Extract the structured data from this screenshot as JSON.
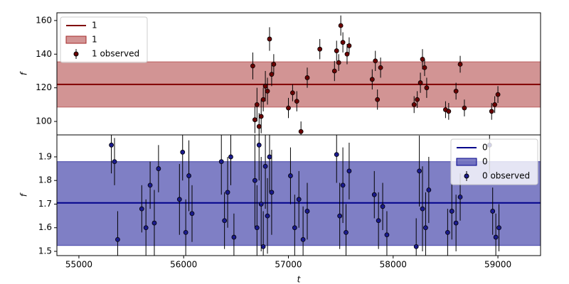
{
  "chart_data": [
    {
      "type": "line",
      "ylabel": "f",
      "xlim": [
        54790,
        59407
      ],
      "ylim": [
        92,
        164.6
      ],
      "yticks": [
        100,
        120,
        140,
        160
      ],
      "legend": "upper left",
      "series": [
        {
          "name": "1",
          "kind": "line",
          "color": "#800000",
          "x": [
            54790,
            59407
          ],
          "values": [
            122,
            122
          ]
        },
        {
          "name": "1",
          "kind": "band",
          "color": "#a52a2a",
          "x": [
            54790,
            59407
          ],
          "lower": [
            108.5,
            108.5
          ],
          "upper": [
            135.5,
            135.5
          ]
        },
        {
          "name": "1 observed",
          "kind": "points",
          "color": "#6b0000",
          "x": [
            56660,
            56680,
            56700,
            56720,
            56740,
            56760,
            56780,
            56800,
            56820,
            56840,
            56860,
            57000,
            57040,
            57080,
            57120,
            57180,
            57300,
            57440,
            57460,
            57480,
            57500,
            57520,
            57560,
            57580,
            57800,
            57830,
            57850,
            57880,
            58200,
            58230,
            58260,
            58280,
            58300,
            58320,
            58500,
            58530,
            58600,
            58640,
            58680,
            58940,
            58970,
            59000
          ],
          "values": [
            133,
            101,
            110,
            97,
            103,
            113,
            121,
            118,
            149,
            128,
            134,
            108,
            117,
            112,
            94,
            126,
            143,
            130,
            142,
            135,
            157,
            147,
            140,
            145,
            125,
            136,
            113,
            132,
            110,
            113,
            123,
            137,
            132,
            120,
            107,
            106,
            118,
            134,
            108,
            106,
            110,
            116
          ],
          "errors": [
            8,
            8,
            10,
            8,
            10,
            7,
            9,
            8,
            7,
            7,
            6,
            6,
            5,
            6,
            6,
            6,
            6,
            6,
            6,
            5,
            6,
            6,
            6,
            5,
            6,
            6,
            6,
            6,
            5,
            5,
            6,
            6,
            5,
            6,
            5,
            5,
            5,
            5,
            5,
            5,
            5,
            5
          ]
        }
      ]
    },
    {
      "type": "line",
      "xlabel": "t",
      "ylabel": "f",
      "xlim": [
        54790,
        59407
      ],
      "ylim": [
        1.482,
        1.993
      ],
      "yticks": [
        1.5,
        1.6,
        1.7,
        1.8,
        1.9
      ],
      "xticks": [
        55000,
        56000,
        57000,
        58000,
        59000
      ],
      "legend": "upper right",
      "series": [
        {
          "name": "0",
          "kind": "line",
          "color": "#00008b",
          "x": [
            54790,
            59407
          ],
          "values": [
            1.705,
            1.705
          ]
        },
        {
          "name": "0",
          "kind": "band",
          "color": "#00008b",
          "x": [
            54790,
            59407
          ],
          "lower": [
            1.525,
            1.525
          ],
          "upper": [
            1.88,
            1.88
          ]
        },
        {
          "name": "0 observed",
          "kind": "points",
          "color": "#1a1a8c",
          "x": [
            55310,
            55340,
            55370,
            55600,
            55640,
            55680,
            55720,
            55760,
            55960,
            55990,
            56020,
            56050,
            56080,
            56360,
            56390,
            56420,
            56450,
            56480,
            56680,
            56700,
            56720,
            56740,
            56760,
            56780,
            56800,
            56820,
            56840,
            57020,
            57060,
            57100,
            57140,
            57180,
            57460,
            57490,
            57520,
            57550,
            57580,
            57820,
            57860,
            57900,
            57940,
            58220,
            58250,
            58280,
            58310,
            58340,
            58520,
            58560,
            58600,
            58640,
            58920,
            58950,
            58980,
            59010
          ],
          "values": [
            1.95,
            1.88,
            1.55,
            1.68,
            1.6,
            1.78,
            1.62,
            1.85,
            1.72,
            1.92,
            1.58,
            1.82,
            1.66,
            1.88,
            1.63,
            1.75,
            1.9,
            1.56,
            1.8,
            1.6,
            1.95,
            1.7,
            1.52,
            1.86,
            1.65,
            1.9,
            1.75,
            1.82,
            1.6,
            1.72,
            1.55,
            1.67,
            1.91,
            1.65,
            1.78,
            1.58,
            1.84,
            1.74,
            1.63,
            1.69,
            1.57,
            1.52,
            1.84,
            1.68,
            1.6,
            1.76,
            1.58,
            1.67,
            1.62,
            1.73,
            1.95,
            1.67,
            1.56,
            1.6
          ],
          "errors": [
            0.12,
            0.1,
            0.12,
            0.1,
            0.12,
            0.1,
            0.14,
            0.1,
            0.15,
            0.12,
            0.14,
            0.15,
            0.12,
            0.14,
            0.12,
            0.15,
            0.12,
            0.1,
            0.2,
            0.18,
            0.15,
            0.2,
            0.15,
            0.18,
            0.16,
            0.15,
            0.18,
            0.12,
            0.14,
            0.12,
            0.14,
            0.12,
            0.12,
            0.14,
            0.16,
            0.12,
            0.12,
            0.1,
            0.12,
            0.1,
            0.1,
            0.12,
            0.15,
            0.18,
            0.15,
            0.14,
            0.1,
            0.12,
            0.12,
            0.1,
            0.12,
            0.1,
            0.1,
            0.1
          ]
        }
      ]
    }
  ]
}
